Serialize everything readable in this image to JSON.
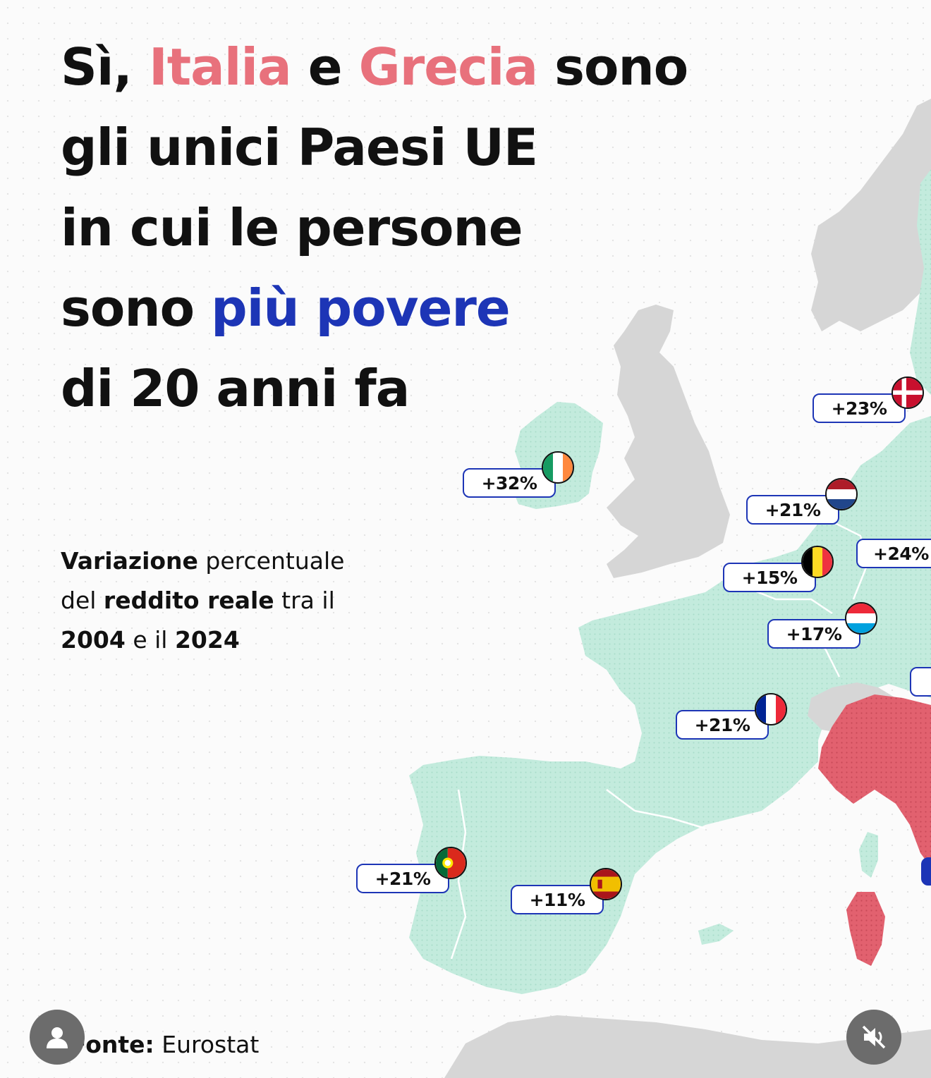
{
  "headline": {
    "line1_a": "Sì, ",
    "line1_italy": "Italia",
    "line1_b": " e ",
    "line1_greece": "Grecia",
    "line1_c": " sono",
    "line2": "gli unici Paesi UE",
    "line3": "in cui le persone",
    "line4_a": "sono ",
    "line4_highlight": "più povere",
    "line5": "di 20 anni fa"
  },
  "subtitle": {
    "bold1": "Variazione",
    "text1": " percentuale",
    "text2": "del ",
    "bold2": "reddito reale",
    "text3": " tra il",
    "bold3": "2004",
    "text4": " e il ",
    "bold4": "2024"
  },
  "source": {
    "label": "Fonte:",
    "value": " Eurostat"
  },
  "countries": {
    "ireland": "+32%",
    "denmark": "+23%",
    "netherlands": "+21%",
    "belgium": "+15%",
    "germany": "+24%",
    "luxembourg": "+17%",
    "france": "+21%",
    "portugal": "+21%",
    "spain": "+11%"
  },
  "colors": {
    "increase": "#c3ebdd",
    "decrease": "#e2616f",
    "non_eu": "#d6d6d6",
    "highlight_pink": "#e8717c",
    "highlight_blue": "#1d35b6"
  },
  "icons": {
    "avatar": "user-icon",
    "mute": "muted-speaker-icon"
  }
}
